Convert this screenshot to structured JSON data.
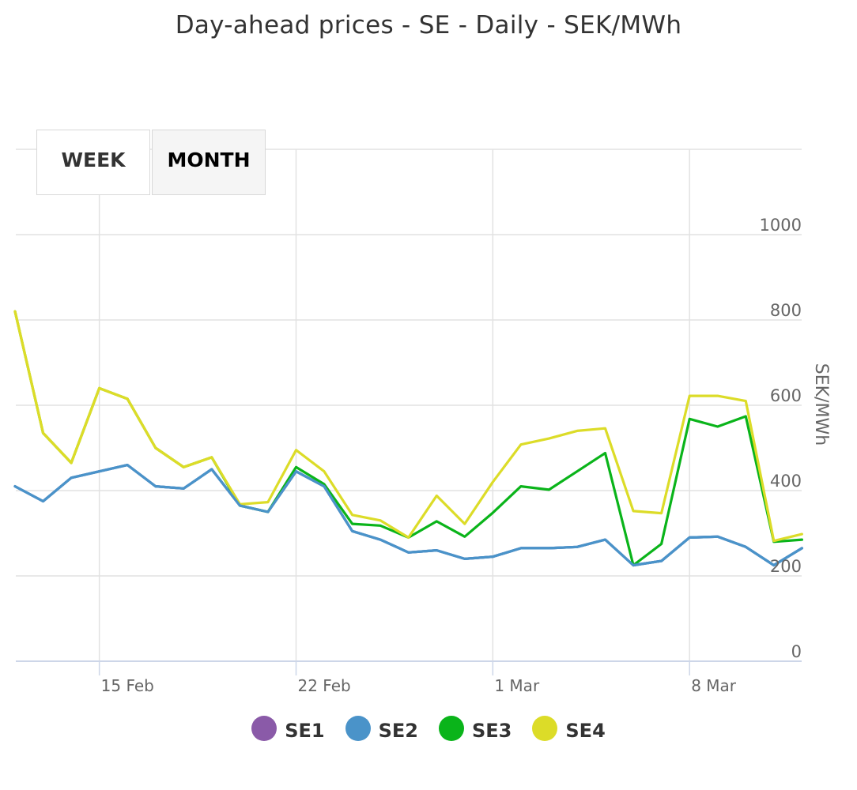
{
  "title": "Day-ahead prices - SE - Daily - SEK/MWh",
  "range_buttons": [
    {
      "label": "WEEK",
      "active": false
    },
    {
      "label": "MONTH",
      "active": true
    }
  ],
  "colors": {
    "SE1": "#8a5aa8",
    "SE2": "#4a93c9",
    "SE3": "#0ab41a",
    "SE4": "#dcdc28",
    "grid": "#e2e2e2",
    "axis": "#cdd6e8",
    "tick_text": "#666666"
  },
  "chart_data": {
    "type": "line",
    "title": "Day-ahead prices - SE - Daily - SEK/MWh",
    "ylabel": "SEK/MWh",
    "xlabel": "",
    "ylim": [
      0,
      1200
    ],
    "yticks": [
      0,
      200,
      400,
      600,
      800,
      1000
    ],
    "xticks": [
      {
        "day": "15 Feb",
        "label": "15 Feb"
      },
      {
        "day": "22 Feb",
        "label": "22 Feb"
      },
      {
        "day": "1 Mar",
        "label": "1 Mar"
      },
      {
        "day": "8 Mar",
        "label": "8 Mar"
      }
    ],
    "x": [
      "12 Feb",
      "13 Feb",
      "14 Feb",
      "15 Feb",
      "16 Feb",
      "17 Feb",
      "18 Feb",
      "19 Feb",
      "20 Feb",
      "21 Feb",
      "22 Feb",
      "23 Feb",
      "24 Feb",
      "25 Feb",
      "26 Feb",
      "27 Feb",
      "28 Feb",
      "1 Mar",
      "2 Mar",
      "3 Mar",
      "4 Mar",
      "5 Mar",
      "6 Mar",
      "7 Mar",
      "8 Mar",
      "9 Mar",
      "10 Mar",
      "11 Mar",
      "12 Mar"
    ],
    "grid": true,
    "legend_position": "bottom",
    "series": [
      {
        "name": "SE1",
        "values": [
          410,
          375,
          430,
          445,
          460,
          410,
          405,
          450,
          365,
          350,
          445,
          410,
          305,
          285,
          255,
          260,
          240,
          245,
          265,
          265,
          268,
          285,
          225,
          235,
          290,
          292,
          268,
          225,
          265
        ]
      },
      {
        "name": "SE2",
        "values": [
          410,
          375,
          430,
          445,
          460,
          410,
          405,
          450,
          365,
          350,
          445,
          410,
          305,
          285,
          255,
          260,
          240,
          245,
          265,
          265,
          268,
          285,
          225,
          235,
          290,
          292,
          268,
          225,
          265
        ]
      },
      {
        "name": "SE3",
        "values": [
          820,
          535,
          465,
          640,
          615,
          500,
          455,
          478,
          365,
          350,
          455,
          415,
          322,
          318,
          290,
          328,
          292,
          348,
          410,
          402,
          445,
          488,
          225,
          275,
          568,
          550,
          574,
          280,
          285
        ]
      },
      {
        "name": "SE4",
        "values": [
          820,
          535,
          465,
          640,
          615,
          500,
          455,
          478,
          368,
          373,
          495,
          445,
          343,
          330,
          290,
          388,
          322,
          420,
          508,
          522,
          540,
          546,
          352,
          347,
          622,
          622,
          610,
          282,
          298
        ]
      }
    ]
  }
}
